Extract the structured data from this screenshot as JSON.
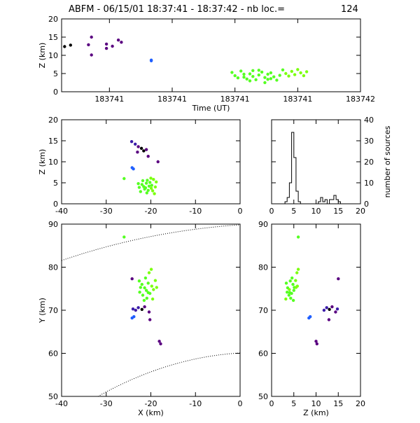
{
  "header": {
    "title": "ABFM - 06/15/01 18:37:41 - 18:37:42 - nb loc.=",
    "count": "124"
  },
  "colors": {
    "axis": "#000000",
    "dark": "#000000",
    "purple": "#5a0080",
    "indigo": "#3b1ba8",
    "blue": "#1f5fff",
    "green": "#55ff22",
    "lime": "#7cff10"
  },
  "chart_data": [
    {
      "id": "time-height",
      "type": "scatter",
      "xlabel": "Time (UT)",
      "ylabel": "Z (km)",
      "xlim": [
        0,
        1
      ],
      "ylim": [
        0,
        20
      ],
      "xtick_labels": [
        "183741",
        "183741",
        "183741",
        "183741",
        "183742"
      ],
      "yticks": [
        0,
        5,
        10,
        15,
        20
      ],
      "points": [
        [
          0.01,
          12.4,
          "dark"
        ],
        [
          0.03,
          12.8,
          "dark"
        ],
        [
          0.09,
          12.9,
          "purple"
        ],
        [
          0.1,
          15.0,
          "purple"
        ],
        [
          0.1,
          10.1,
          "purple"
        ],
        [
          0.15,
          11.9,
          "purple"
        ],
        [
          0.15,
          13.1,
          "purple"
        ],
        [
          0.17,
          12.5,
          "purple"
        ],
        [
          0.19,
          14.2,
          "purple"
        ],
        [
          0.2,
          13.6,
          "purple"
        ],
        [
          0.3,
          8.7,
          "blue"
        ],
        [
          0.3,
          8.5,
          "blue"
        ],
        [
          0.57,
          5.3,
          "green"
        ],
        [
          0.58,
          4.4,
          "green"
        ],
        [
          0.59,
          3.8,
          "green"
        ],
        [
          0.6,
          5.7,
          "green"
        ],
        [
          0.61,
          4.8,
          "green"
        ],
        [
          0.62,
          3.5,
          "green"
        ],
        [
          0.63,
          4.9,
          "green"
        ],
        [
          0.64,
          5.8,
          "green"
        ],
        [
          0.64,
          4.2,
          "green"
        ],
        [
          0.65,
          3.3,
          "green"
        ],
        [
          0.66,
          4.6,
          "green"
        ],
        [
          0.67,
          5.4,
          "green"
        ],
        [
          0.68,
          3.9,
          "green"
        ],
        [
          0.68,
          2.5,
          "green"
        ],
        [
          0.69,
          4.8,
          "green"
        ],
        [
          0.7,
          3.6,
          "green"
        ],
        [
          0.7,
          5.2,
          "green"
        ],
        [
          0.71,
          4.1,
          "green"
        ],
        [
          0.72,
          3.2,
          "green"
        ],
        [
          0.73,
          4.5,
          "green"
        ],
        [
          0.74,
          6.0,
          "green"
        ],
        [
          0.75,
          5.0,
          "lime"
        ],
        [
          0.76,
          4.3,
          "lime"
        ],
        [
          0.77,
          5.6,
          "lime"
        ],
        [
          0.78,
          4.7,
          "lime"
        ],
        [
          0.79,
          6.1,
          "lime"
        ],
        [
          0.8,
          5.2,
          "lime"
        ],
        [
          0.81,
          4.4,
          "lime"
        ],
        [
          0.82,
          5.5,
          "lime"
        ],
        [
          0.63,
          3.0,
          "green"
        ],
        [
          0.66,
          5.9,
          "green"
        ],
        [
          0.61,
          4.0,
          "green"
        ],
        [
          0.69,
          3.4,
          "green"
        ]
      ]
    },
    {
      "id": "x-height",
      "type": "scatter",
      "xlabel": "",
      "ylabel": "Z (km)",
      "xlim": [
        -40,
        0
      ],
      "ylim": [
        0,
        20
      ],
      "xticks": [
        -40,
        -30,
        -20,
        -10,
        0
      ],
      "yticks": [
        0,
        5,
        10,
        15,
        20
      ],
      "points": [
        [
          -24.3,
          14.8,
          "indigo"
        ],
        [
          -23.5,
          14.2,
          "indigo"
        ],
        [
          -22.8,
          13.6,
          "purple"
        ],
        [
          -22.1,
          13.2,
          "dark"
        ],
        [
          -21.6,
          12.6,
          "dark"
        ],
        [
          -21.0,
          12.9,
          "purple"
        ],
        [
          -20.6,
          11.3,
          "purple"
        ],
        [
          -23.0,
          12.3,
          "purple"
        ],
        [
          -18.4,
          10.0,
          "purple"
        ],
        [
          -24.2,
          8.6,
          "blue"
        ],
        [
          -23.9,
          8.3,
          "blue"
        ],
        [
          -26.0,
          6.0,
          "green"
        ],
        [
          -22.6,
          3.9,
          "green"
        ],
        [
          -22.0,
          4.6,
          "green"
        ],
        [
          -21.4,
          3.5,
          "green"
        ],
        [
          -21.0,
          4.9,
          "green"
        ],
        [
          -20.6,
          3.2,
          "green"
        ],
        [
          -20.2,
          5.1,
          "green"
        ],
        [
          -19.8,
          4.4,
          "green"
        ],
        [
          -19.4,
          5.8,
          "lime"
        ],
        [
          -19.0,
          4.0,
          "lime"
        ],
        [
          -21.8,
          5.5,
          "green"
        ],
        [
          -22.3,
          2.9,
          "green"
        ],
        [
          -20.9,
          2.6,
          "green"
        ],
        [
          -19.6,
          3.1,
          "lime"
        ],
        [
          -18.8,
          5.2,
          "lime"
        ],
        [
          -21.2,
          3.8,
          "green"
        ],
        [
          -20.4,
          4.2,
          "green"
        ],
        [
          -19.2,
          2.4,
          "lime"
        ],
        [
          -22.8,
          4.8,
          "green"
        ],
        [
          -20.0,
          6.1,
          "lime"
        ],
        [
          -21.6,
          4.1,
          "green"
        ],
        [
          -19.9,
          3.7,
          "lime"
        ],
        [
          -20.8,
          5.6,
          "green"
        ]
      ]
    },
    {
      "id": "histogram",
      "type": "bar",
      "ylabel": "number of sources",
      "xlim": [
        0,
        20
      ],
      "ylim": [
        0,
        40
      ],
      "xticks": [
        0,
        5,
        10,
        15,
        20
      ],
      "yticks": [
        0,
        10,
        20,
        30,
        40
      ],
      "bin_edges": [
        0,
        0.5,
        1,
        1.5,
        2,
        2.5,
        3,
        3.5,
        4,
        4.5,
        5,
        5.5,
        6,
        6.5,
        7,
        7.5,
        8,
        8.5,
        9,
        9.5,
        10,
        10.5,
        11,
        11.5,
        12,
        12.5,
        13,
        13.5,
        14,
        14.5,
        15,
        15.5,
        16,
        16.5,
        17,
        17.5,
        18,
        18.5,
        19,
        19.5,
        20
      ],
      "values": [
        0,
        0,
        0,
        0,
        0,
        0,
        1,
        3,
        10,
        34,
        22,
        6,
        1,
        0,
        0,
        0,
        0,
        0,
        0,
        0,
        0,
        1,
        3,
        1,
        2,
        0,
        2,
        2,
        4,
        2,
        1,
        0,
        0,
        0,
        0,
        0,
        0,
        0,
        0,
        0
      ]
    },
    {
      "id": "plan-view",
      "type": "scatter",
      "xlabel": "X (km)",
      "ylabel": "Y (km)",
      "xlim": [
        -40,
        0
      ],
      "ylim": [
        50,
        90
      ],
      "xticks": [
        -40,
        -30,
        -20,
        -10,
        0
      ],
      "yticks": [
        50,
        60,
        70,
        80,
        90
      ],
      "points": [
        [
          -26.0,
          87.0,
          "green"
        ],
        [
          -24.2,
          77.3,
          "purple"
        ],
        [
          -22.6,
          76.8,
          "green"
        ],
        [
          -22.0,
          76.0,
          "green"
        ],
        [
          -21.4,
          75.2,
          "green"
        ],
        [
          -21.0,
          74.6,
          "green"
        ],
        [
          -20.6,
          76.3,
          "green"
        ],
        [
          -20.2,
          73.9,
          "green"
        ],
        [
          -19.8,
          75.6,
          "lime"
        ],
        [
          -19.4,
          74.8,
          "lime"
        ],
        [
          -19.0,
          76.9,
          "lime"
        ],
        [
          -21.8,
          73.5,
          "green"
        ],
        [
          -22.3,
          75.3,
          "green"
        ],
        [
          -20.9,
          72.8,
          "green"
        ],
        [
          -19.6,
          72.6,
          "lime"
        ],
        [
          -20.4,
          78.7,
          "lime"
        ],
        [
          -19.9,
          79.5,
          "lime"
        ],
        [
          -21.2,
          77.5,
          "green"
        ],
        [
          -18.7,
          75.3,
          "lime"
        ],
        [
          -20.6,
          74.1,
          "green"
        ],
        [
          -21.5,
          72.3,
          "green"
        ],
        [
          -22.5,
          74.2,
          "green"
        ],
        [
          -23.4,
          70.0,
          "indigo"
        ],
        [
          -22.8,
          70.6,
          "indigo"
        ],
        [
          -22.0,
          70.2,
          "dark"
        ],
        [
          -21.4,
          70.8,
          "purple"
        ],
        [
          -20.4,
          69.6,
          "purple"
        ],
        [
          -23.8,
          68.5,
          "blue"
        ],
        [
          -24.2,
          68.2,
          "blue"
        ],
        [
          -20.2,
          67.8,
          "purple"
        ],
        [
          -18.1,
          62.8,
          "purple"
        ],
        [
          -17.8,
          62.2,
          "purple"
        ],
        [
          -24.0,
          70.3,
          "indigo"
        ]
      ]
    },
    {
      "id": "z-y-view",
      "type": "scatter",
      "xlabel": "Z (km)",
      "ylabel": "",
      "xlim": [
        0,
        20
      ],
      "ylim": [
        50,
        90
      ],
      "xticks": [
        0,
        5,
        10,
        15,
        20
      ],
      "yticks": [
        50,
        60,
        70,
        80,
        90
      ],
      "points": [
        [
          6.0,
          87.0,
          "green"
        ],
        [
          15.0,
          77.3,
          "purple"
        ],
        [
          4.2,
          76.8,
          "green"
        ],
        [
          4.8,
          76.0,
          "green"
        ],
        [
          3.6,
          75.2,
          "green"
        ],
        [
          5.0,
          74.6,
          "green"
        ],
        [
          3.3,
          76.3,
          "green"
        ],
        [
          4.5,
          73.9,
          "green"
        ],
        [
          5.8,
          75.6,
          "lime"
        ],
        [
          4.0,
          74.8,
          "lime"
        ],
        [
          5.4,
          76.9,
          "lime"
        ],
        [
          3.9,
          73.5,
          "green"
        ],
        [
          5.1,
          75.3,
          "green"
        ],
        [
          4.3,
          72.8,
          "green"
        ],
        [
          3.2,
          72.6,
          "lime"
        ],
        [
          5.7,
          78.7,
          "lime"
        ],
        [
          6.0,
          79.5,
          "lime"
        ],
        [
          4.6,
          77.5,
          "green"
        ],
        [
          5.5,
          75.3,
          "lime"
        ],
        [
          4.1,
          74.1,
          "green"
        ],
        [
          4.9,
          72.3,
          "green"
        ],
        [
          3.5,
          74.2,
          "green"
        ],
        [
          11.8,
          70.0,
          "indigo"
        ],
        [
          12.4,
          70.6,
          "indigo"
        ],
        [
          13.0,
          70.2,
          "dark"
        ],
        [
          13.6,
          70.8,
          "purple"
        ],
        [
          14.4,
          69.6,
          "purple"
        ],
        [
          8.7,
          68.5,
          "blue"
        ],
        [
          8.4,
          68.2,
          "blue"
        ],
        [
          12.9,
          67.8,
          "purple"
        ],
        [
          10.0,
          62.8,
          "purple"
        ],
        [
          10.2,
          62.2,
          "purple"
        ],
        [
          14.8,
          70.3,
          "indigo"
        ]
      ]
    }
  ]
}
